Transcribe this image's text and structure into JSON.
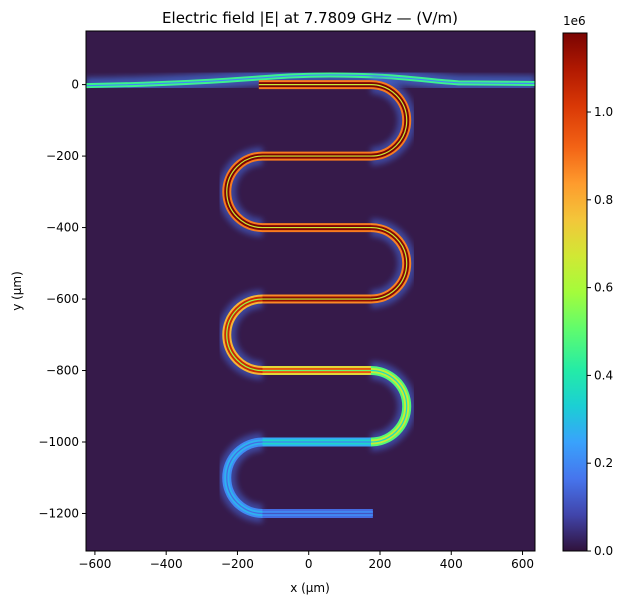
{
  "chart_data": {
    "type": "heatmap",
    "title": "Electric field |E| at 7.7809 GHz — (V/m)",
    "xlabel": "x (µm)",
    "ylabel": "y (µm)",
    "xlim": [
      -625,
      635
    ],
    "ylim": [
      -1305,
      150
    ],
    "xticks": [
      -600,
      -400,
      -200,
      0,
      200,
      400,
      600
    ],
    "xtick_labels": [
      "−600",
      "−400",
      "−200",
      "0",
      "200",
      "400",
      "600"
    ],
    "yticks": [
      0,
      -200,
      -400,
      -600,
      -800,
      -1000,
      -1200
    ],
    "ytick_labels": [
      "0",
      "−200",
      "−400",
      "−600",
      "−800",
      "−1000",
      "−1200"
    ],
    "colorbar": {
      "label": "",
      "scale_label": "1e6",
      "range": [
        0,
        1.18
      ],
      "ticks": [
        0.0,
        0.2,
        0.4,
        0.6,
        0.8,
        1.0
      ],
      "tick_labels": [
        "0.0",
        "0.2",
        "0.4",
        "0.6",
        "0.8",
        "1.0"
      ],
      "colormap": "turbo"
    },
    "background_value": 0.05,
    "structures": [
      {
        "name": "feedline",
        "y_center": 5,
        "x_range": [
          -625,
          635
        ],
        "field_value": 0.45,
        "description": "horizontal feedline with slight bump near x=0..300"
      },
      {
        "name": "meander-resonator",
        "x_left_turn": -230,
        "x_right_turn": 275,
        "straight_x_range": [
          -130,
          180
        ],
        "segments": [
          {
            "y": 0,
            "field": 1.18
          },
          {
            "y": -200,
            "field": 1.18
          },
          {
            "y": -400,
            "field": 1.18
          },
          {
            "y": -600,
            "field": 1.15
          },
          {
            "y": -800,
            "field": 0.95
          },
          {
            "y": -1000,
            "field": 0.35
          },
          {
            "y": -1200,
            "field": 0.2
          }
        ]
      }
    ]
  }
}
